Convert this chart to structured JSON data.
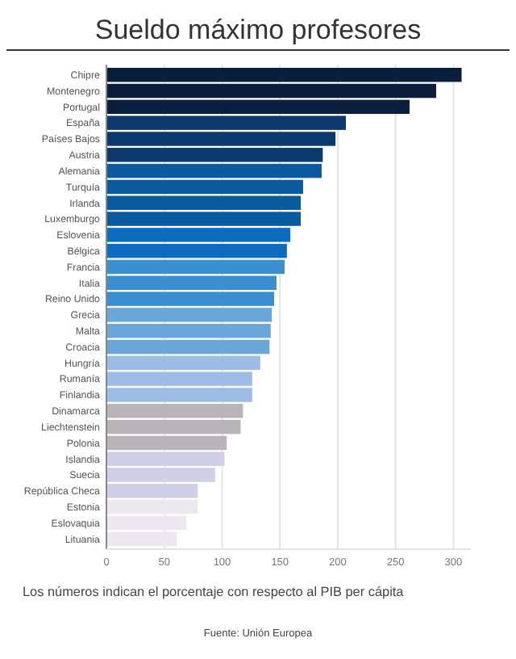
{
  "chart_data": {
    "type": "bar",
    "orientation": "horizontal",
    "title": "Sueldo máximo profesores",
    "categories": [
      "Chipre",
      "Montenegro",
      "Portugal",
      "España",
      "Países Bajos",
      "Austria",
      "Alemania",
      "Turquía",
      "Irlanda",
      "Luxemburgo",
      "Eslovenia",
      "Bélgica",
      "Francia",
      "Italia",
      "Reino Unido",
      "Grecia",
      "Malta",
      "Croacia",
      "Hungría",
      "Rumanía",
      "Finlandia",
      "Dinamarca",
      "Liechtenstein",
      "Polonia",
      "Islandia",
      "Suecia",
      "República Checa",
      "Estonia",
      "Eslovaquia",
      "Lituania"
    ],
    "values": [
      307,
      285,
      262,
      207,
      198,
      187,
      186,
      170,
      168,
      168,
      159,
      156,
      154,
      147,
      145,
      143,
      142,
      141,
      133,
      126,
      126,
      118,
      116,
      104,
      102,
      94,
      79,
      79,
      69,
      61
    ],
    "colors": [
      "#0a1f3d",
      "#0a1f3d",
      "#0a1f3d",
      "#0d3a6e",
      "#0d3a6e",
      "#0d3a6e",
      "#0a5aa0",
      "#0a5aa0",
      "#0a5aa0",
      "#0a5aa0",
      "#0b6cc0",
      "#0b6cc0",
      "#3a8fd0",
      "#3a8fd0",
      "#3a8fd0",
      "#6aa6d8",
      "#6aa6d8",
      "#6aa6d8",
      "#9dbde6",
      "#9dbde6",
      "#9dbde6",
      "#b8b4b8",
      "#b8b4b8",
      "#b8b4b8",
      "#cfcfe8",
      "#cfcfe8",
      "#cfcfe8",
      "#ede8f0",
      "#ede8f0",
      "#ede8f0"
    ],
    "xlim": [
      0,
      315
    ],
    "xticks": [
      0,
      50,
      100,
      150,
      200,
      250,
      300
    ],
    "grid": "x",
    "annotations": [
      "Los números indican el porcentaje con respecto al PIB per cápita",
      "Fuente: Unión Europea"
    ]
  }
}
